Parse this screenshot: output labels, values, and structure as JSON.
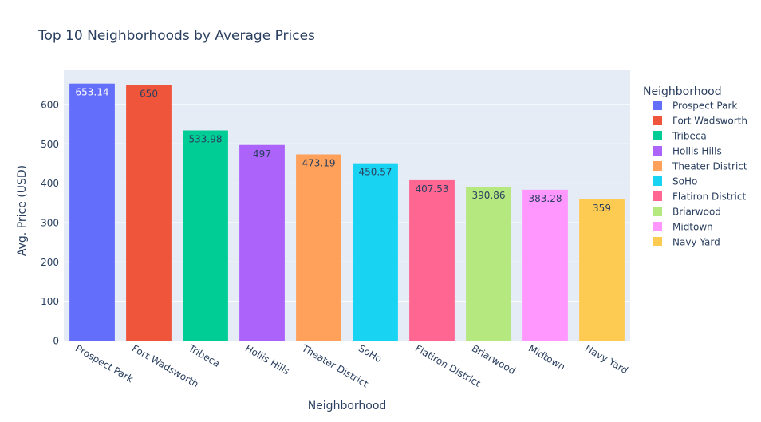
{
  "chart_data": {
    "type": "bar",
    "title": "Top 10 Neighborhoods by Average Prices",
    "xlabel": "Neighborhood",
    "ylabel": "Avg. Price (USD)",
    "legend_title": "Neighborhood",
    "legend_position": "right",
    "grid": true,
    "ylim": [
      0,
      687
    ],
    "yticks": [
      0,
      100,
      200,
      300,
      400,
      500,
      600
    ],
    "categories": [
      "Prospect Park",
      "Fort Wadsworth",
      "Tribeca",
      "Hollis Hills",
      "Theater District",
      "SoHo",
      "Flatiron District",
      "Briarwood",
      "Midtown",
      "Navy Yard"
    ],
    "values": [
      653.14,
      650,
      533.98,
      497,
      473.19,
      450.57,
      407.53,
      390.86,
      383.28,
      359
    ],
    "value_labels": [
      "653.14",
      "650",
      "533.98",
      "497",
      "473.19",
      "450.57",
      "407.53",
      "390.86",
      "383.28",
      "359"
    ],
    "colors": [
      "#636efa",
      "#EF553B",
      "#00cc96",
      "#ab63fa",
      "#FFA15A",
      "#19d3f3",
      "#FF6692",
      "#B6E880",
      "#FF97FF",
      "#FECB52"
    ],
    "label_text_colors": [
      "#ffffff",
      "#2a3f5f",
      "#2a3f5f",
      "#2a3f5f",
      "#2a3f5f",
      "#2a3f5f",
      "#2a3f5f",
      "#2a3f5f",
      "#2a3f5f",
      "#2a3f5f"
    ]
  }
}
